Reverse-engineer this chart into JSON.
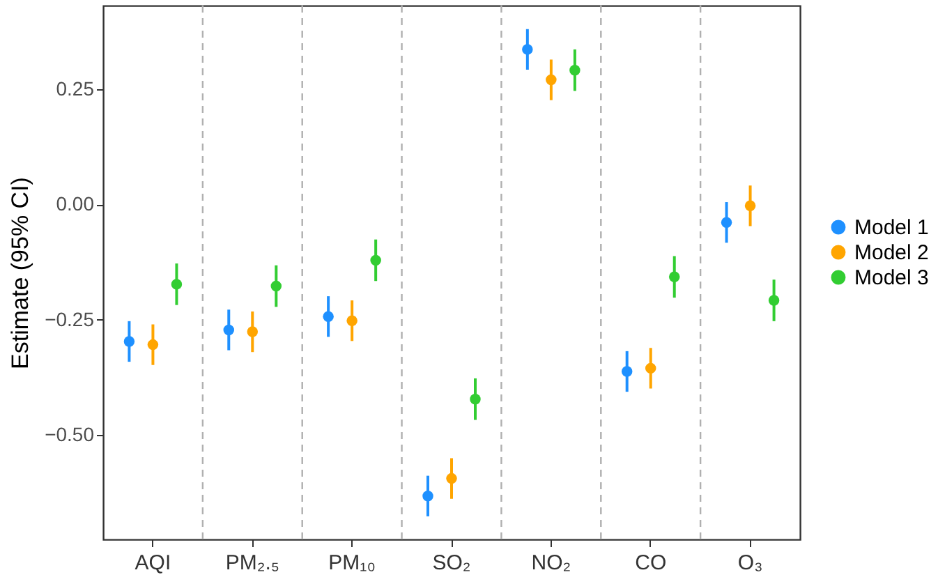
{
  "chart_data": {
    "type": "scatter",
    "ylabel": "Estimate (95% CI)",
    "categories": [
      "AQI",
      "PM₂.₅",
      "PM₁₀",
      "SO₂",
      "NO₂",
      "CO",
      "O₃"
    ],
    "series": [
      {
        "name": "Model 1",
        "color": "#1e90ff",
        "values": [
          -0.297,
          -0.272,
          -0.243,
          -0.632,
          0.336,
          -0.362,
          -0.039
        ],
        "errors": [
          0.044,
          0.044,
          0.044,
          0.044,
          0.044,
          0.044,
          0.044
        ]
      },
      {
        "name": "Model 2",
        "color": "#ffa500",
        "values": [
          -0.304,
          -0.276,
          -0.252,
          -0.594,
          0.27,
          -0.355,
          -0.003
        ],
        "errors": [
          0.044,
          0.044,
          0.044,
          0.044,
          0.044,
          0.044,
          0.044
        ]
      },
      {
        "name": "Model 3",
        "color": "#32cd32",
        "values": [
          -0.173,
          -0.177,
          -0.121,
          -0.422,
          0.291,
          -0.157,
          -0.208
        ],
        "errors": [
          0.045,
          0.045,
          0.045,
          0.045,
          0.045,
          0.045,
          0.045
        ]
      }
    ],
    "ylim": [
      -0.726,
      0.431
    ],
    "yticks": [
      {
        "value": 0.25,
        "label": "0.25"
      },
      {
        "value": 0,
        "label": "0.00"
      },
      {
        "value": -0.25,
        "label": "−0.25"
      },
      {
        "value": -0.5,
        "label": "−0.50"
      }
    ],
    "grid": "x",
    "legend": "right",
    "marker": "circle"
  }
}
